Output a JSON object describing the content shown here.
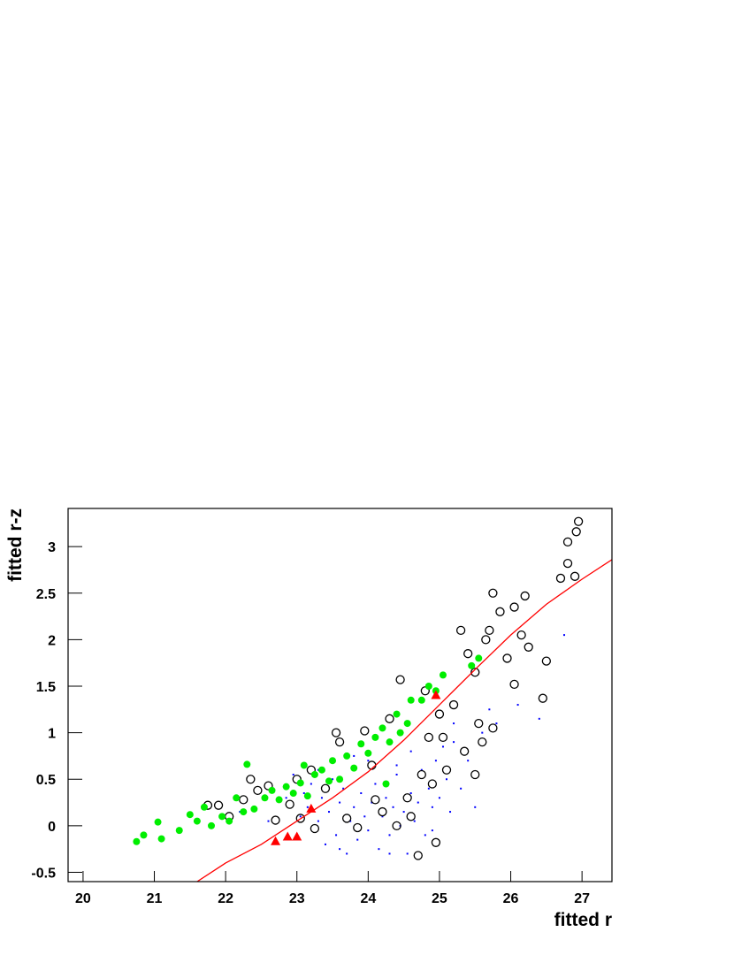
{
  "chart_data": {
    "type": "scatter",
    "x_label": "fitted r",
    "y_label": "fitted r-z",
    "xlim": [
      19.79,
      27.42
    ],
    "ylim": [
      -0.6,
      3.41
    ],
    "xticks": [
      20,
      21,
      22,
      23,
      24,
      25,
      26,
      27
    ],
    "yticks": [
      -0.5,
      0,
      0.5,
      1,
      1.5,
      2,
      2.5,
      3
    ],
    "series": [
      {
        "marker": "dot",
        "color": "#0000ff",
        "x": [
          22.85,
          22.95,
          23.05,
          23.1,
          23.15,
          23.2,
          23.3,
          23.35,
          23.4,
          23.45,
          23.5,
          23.55,
          23.6,
          23.65,
          23.7,
          23.75,
          23.8,
          23.85,
          23.9,
          23.95,
          24.0,
          24.05,
          24.1,
          24.15,
          24.2,
          24.25,
          24.3,
          24.35,
          24.4,
          24.45,
          24.5,
          24.55,
          24.6,
          24.65,
          24.7,
          24.75,
          24.8,
          24.85,
          24.9,
          24.95,
          25.0,
          25.05,
          25.1,
          25.15,
          25.2,
          25.3,
          25.4,
          25.5,
          25.6,
          25.7,
          22.2,
          22.6,
          23.3,
          24.0,
          24.6,
          25.2,
          25.8,
          26.1,
          26.4,
          26.75,
          23.6,
          24.3,
          24.9,
          23.8,
          24.4
        ],
        "values": [
          0.3,
          0.55,
          0.1,
          0.35,
          0.2,
          0.45,
          0.05,
          0.3,
          -0.2,
          0.15,
          0.5,
          -0.1,
          0.25,
          0.4,
          -0.3,
          0.05,
          0.2,
          -0.15,
          0.35,
          0.1,
          -0.05,
          0.25,
          0.45,
          -0.25,
          0.1,
          0.3,
          -0.1,
          0.2,
          0.55,
          0.0,
          0.15,
          -0.3,
          0.35,
          0.05,
          0.25,
          0.6,
          -0.1,
          0.4,
          0.2,
          0.7,
          0.3,
          0.85,
          0.5,
          0.15,
          1.1,
          0.4,
          0.7,
          0.2,
          1.0,
          1.25,
          0.15,
          0.05,
          0.6,
          0.7,
          0.8,
          0.9,
          1.1,
          1.3,
          1.15,
          2.05,
          -0.25,
          -0.3,
          -0.05,
          0.75,
          0.65
        ]
      },
      {
        "marker": "open-circle",
        "color": "#000000",
        "x": [
          21.75,
          21.9,
          22.05,
          22.25,
          22.35,
          22.45,
          22.6,
          22.7,
          22.9,
          23.0,
          23.05,
          23.2,
          23.25,
          23.4,
          23.55,
          23.6,
          23.7,
          23.85,
          23.95,
          24.05,
          24.1,
          24.2,
          24.3,
          24.4,
          24.45,
          24.55,
          24.6,
          24.7,
          24.75,
          24.8,
          24.85,
          24.9,
          24.95,
          25.0,
          25.05,
          25.1,
          25.2,
          25.3,
          25.35,
          25.4,
          25.5,
          25.5,
          25.55,
          25.6,
          25.65,
          25.7,
          25.75,
          25.75,
          25.85,
          25.95,
          26.05,
          26.05,
          26.15,
          26.2,
          26.25,
          26.45,
          26.5,
          26.7,
          26.8,
          26.8,
          26.9,
          26.92,
          26.95
        ],
        "values": [
          0.22,
          0.22,
          0.1,
          0.28,
          0.5,
          0.38,
          0.43,
          0.06,
          0.23,
          0.5,
          0.08,
          0.6,
          -0.03,
          0.4,
          1.0,
          0.9,
          0.08,
          -0.02,
          1.02,
          0.65,
          0.28,
          0.15,
          1.15,
          0.0,
          1.57,
          0.3,
          0.1,
          -0.32,
          0.55,
          1.45,
          0.95,
          0.45,
          -0.18,
          1.2,
          0.95,
          0.6,
          1.3,
          2.1,
          0.8,
          1.85,
          1.65,
          0.55,
          1.1,
          0.9,
          2.0,
          2.1,
          2.5,
          1.05,
          2.3,
          1.8,
          2.35,
          1.52,
          2.05,
          2.47,
          1.92,
          1.37,
          1.77,
          2.66,
          2.82,
          3.05,
          2.68,
          3.16,
          3.27
        ]
      },
      {
        "marker": "filled-circle",
        "color": "#00ee00",
        "x": [
          20.75,
          20.85,
          21.05,
          21.1,
          21.35,
          21.5,
          21.6,
          21.7,
          21.8,
          21.95,
          22.05,
          22.15,
          22.25,
          22.3,
          22.4,
          22.55,
          22.65,
          22.75,
          22.85,
          22.95,
          23.05,
          23.1,
          23.15,
          23.25,
          23.35,
          23.45,
          23.5,
          23.6,
          23.7,
          23.8,
          23.9,
          24.0,
          24.1,
          24.2,
          24.25,
          24.3,
          24.4,
          24.45,
          24.55,
          24.6,
          24.75,
          24.85,
          24.95,
          25.05,
          25.45,
          25.55
        ],
        "values": [
          -0.17,
          -0.1,
          0.04,
          -0.14,
          -0.05,
          0.12,
          0.05,
          0.2,
          0.0,
          0.1,
          0.05,
          0.3,
          0.15,
          0.66,
          0.18,
          0.3,
          0.38,
          0.28,
          0.42,
          0.35,
          0.46,
          0.65,
          0.32,
          0.55,
          0.6,
          0.48,
          0.7,
          0.5,
          0.75,
          0.62,
          0.88,
          0.78,
          0.95,
          1.05,
          0.45,
          0.9,
          1.2,
          1.0,
          1.1,
          1.35,
          1.35,
          1.5,
          1.45,
          1.62,
          1.72,
          1.8
        ]
      },
      {
        "marker": "triangle",
        "color": "#ff0000",
        "x": [
          22.7,
          22.87,
          23.0,
          23.2,
          24.95
        ],
        "values": [
          -0.17,
          -0.12,
          -0.12,
          0.18,
          1.4
        ]
      },
      {
        "marker": "line",
        "color": "#ff0000",
        "x": [
          21.6,
          22.0,
          22.5,
          23.0,
          23.5,
          24.0,
          24.5,
          25.0,
          25.5,
          26.0,
          26.5,
          27.0,
          27.42
        ],
        "values": [
          -0.6,
          -0.4,
          -0.2,
          0.05,
          0.3,
          0.58,
          0.92,
          1.3,
          1.68,
          2.05,
          2.38,
          2.65,
          2.86
        ]
      }
    ]
  }
}
